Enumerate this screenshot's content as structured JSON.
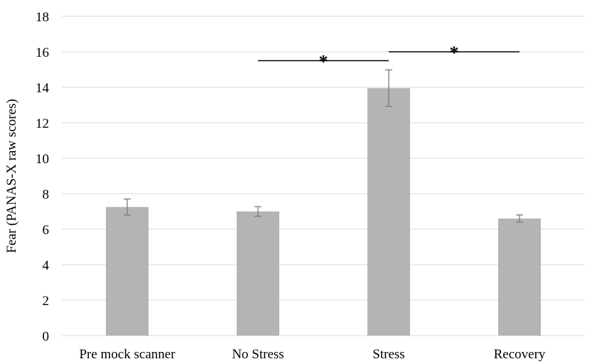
{
  "chart_data": {
    "type": "bar",
    "title": "",
    "xlabel": "",
    "ylabel": "Fear (PANAS-X raw scores)",
    "ylim": [
      0,
      18
    ],
    "yticks": [
      0,
      2,
      4,
      6,
      8,
      10,
      12,
      14,
      16,
      18
    ],
    "grid": true,
    "categories": [
      "Pre mock scanner",
      "No Stress",
      "Stress",
      "Recovery"
    ],
    "values": [
      7.25,
      7.0,
      13.95,
      6.6
    ],
    "error": [
      0.45,
      0.27,
      1.03,
      0.2
    ],
    "colors": {
      "bar": "#b4b4b4",
      "error": "#7a7a7a",
      "grid": "#d9d9d9",
      "sig": "#000000"
    },
    "significance": [
      {
        "from": "No Stress",
        "to": "Stress",
        "y": 15.5,
        "label": "*"
      },
      {
        "from": "Stress",
        "to": "Recovery",
        "y": 16.0,
        "label": "*"
      }
    ]
  }
}
